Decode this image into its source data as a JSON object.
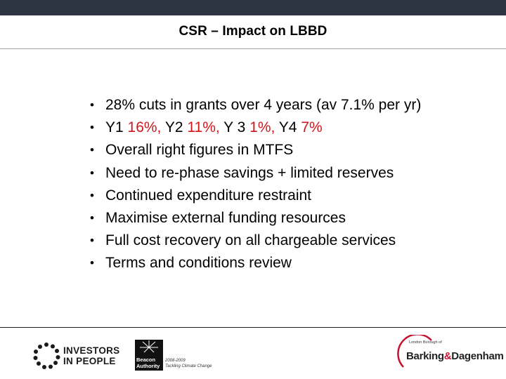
{
  "slide": {
    "title": "CSR – Impact on LBBD",
    "bullet_char": "•",
    "bullets": [
      {
        "text": "28% cuts in grants over 4 years (av 7.1% per yr)"
      },
      {
        "parts": [
          {
            "text": "Y1 ",
            "color": "black"
          },
          {
            "text": "16%, ",
            "color": "red"
          },
          {
            "text": "Y2 ",
            "color": "black"
          },
          {
            "text": "11%, ",
            "color": "red"
          },
          {
            "text": "Y 3 ",
            "color": "black"
          },
          {
            "text": "1%, ",
            "color": "red"
          },
          {
            "text": "Y4 ",
            "color": "black"
          },
          {
            "text": "7%",
            "color": "red"
          }
        ]
      },
      {
        "text": "Overall right figures in MTFS"
      },
      {
        "text": "Need to re-phase savings + limited reserves"
      },
      {
        "text": "Continued expenditure restraint"
      },
      {
        "text": "Maximise external funding resources"
      },
      {
        "text": "Full cost recovery on all chargeable services"
      },
      {
        "text": "Terms and conditions review"
      }
    ],
    "accent_color": "#d0161c"
  },
  "footer": {
    "investors_logo": {
      "line1": "INVESTORS",
      "line2": "IN PEOPLE"
    },
    "beacon_logo": {
      "word1": "Beacon",
      "word2": "Authority",
      "years": "2008-2009",
      "theme": "Tackling Climate Change"
    },
    "barking_logo": {
      "line1": "London Borough of",
      "name_left": "Barking",
      "amp": "&",
      "name_right": "Dagenham"
    }
  }
}
